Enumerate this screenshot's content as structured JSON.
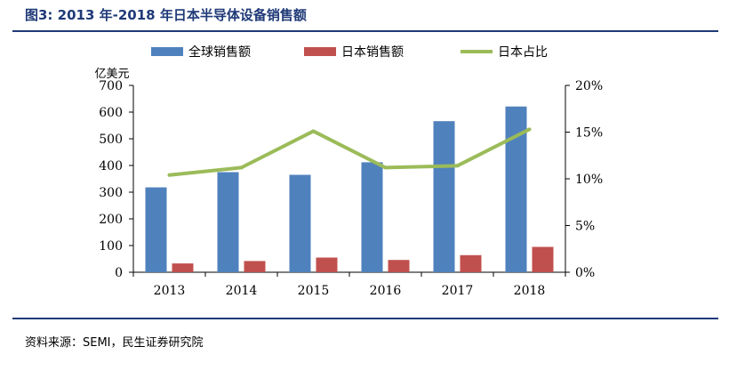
{
  "header": {
    "title": "图3: 2013 年-2018 年日本半导体设备销售额"
  },
  "footer": {
    "source": "资料来源：SEMI，民生证券研究院"
  },
  "chart_data": {
    "type": "bar",
    "title": "图3: 2013 年-2018 年日本半导体设备销售额",
    "ylabel": "亿美元",
    "categories": [
      "2013",
      "2014",
      "2015",
      "2016",
      "2017",
      "2018"
    ],
    "series": [
      {
        "name": "全球销售额",
        "type": "bar",
        "axis": "left",
        "color": "#4f81bd",
        "values": [
          318,
          375,
          365,
          412,
          566,
          621
        ]
      },
      {
        "name": "日本销售额",
        "type": "bar",
        "axis": "left",
        "color": "#c0504d",
        "values": [
          33,
          42,
          55,
          46,
          64,
          95
        ]
      },
      {
        "name": "日本占比",
        "type": "line",
        "axis": "right",
        "color": "#9bbb59",
        "values": [
          10.4,
          11.2,
          15.1,
          11.2,
          11.4,
          15.3
        ]
      }
    ],
    "ylim": [
      0,
      700
    ],
    "y_ticks": [
      "0",
      "100",
      "200",
      "300",
      "400",
      "500",
      "600",
      "700"
    ],
    "y2lim": [
      0,
      20
    ],
    "y2_ticks": [
      "0%",
      "5%",
      "10%",
      "15%",
      "20%"
    ],
    "legend": "top",
    "grid": false
  }
}
